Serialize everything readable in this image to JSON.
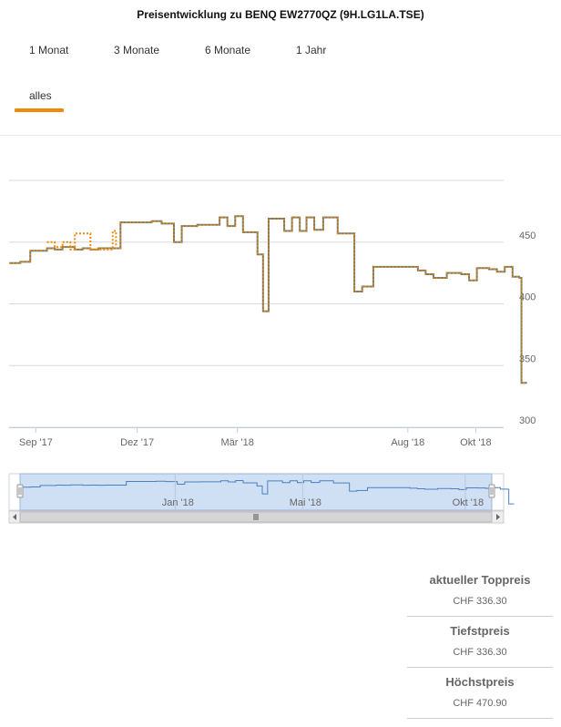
{
  "title": "Preisentwicklung zu BENQ EW2770QZ (9H.LG1LA.TSE)",
  "ranges": [
    "1 Monat",
    "3 Monate",
    "6 Monate",
    "1 Jahr",
    "alles"
  ],
  "active_range": "alles",
  "colors": {
    "accent": "#f0880a",
    "line": "#4a7fc1",
    "dots": "#f0880a",
    "navigator_fill": "#cfe0f5"
  },
  "chart_data": {
    "type": "line",
    "title": "",
    "xlabel": "",
    "ylabel": "",
    "ylim": [
      300,
      500
    ],
    "yticks": [
      300,
      350,
      400,
      450
    ],
    "xlim": [
      "2017-08-08",
      "2018-10-26"
    ],
    "xticks": [
      {
        "date": "2017-09-01",
        "label": "Sep '17"
      },
      {
        "date": "2017-12-01",
        "label": "Dez '17"
      },
      {
        "date": "2018-03-01",
        "label": "Mär '18"
      },
      {
        "date": "2018-08-01",
        "label": "Aug '18"
      },
      {
        "date": "2018-10-01",
        "label": "Okt '18"
      }
    ],
    "grid": true,
    "series": [
      {
        "step": true,
        "points": [
          [
            "2017-08-08",
            433
          ],
          [
            "2017-08-18",
            434
          ],
          [
            "2017-08-27",
            443
          ],
          [
            "2017-09-11",
            445
          ],
          [
            "2017-09-18",
            444
          ],
          [
            "2017-09-25",
            446
          ],
          [
            "2017-10-06",
            444
          ],
          [
            "2017-10-13",
            445
          ],
          [
            "2017-10-20",
            444
          ],
          [
            "2017-10-27",
            445
          ],
          [
            "2017-11-09",
            445
          ],
          [
            "2017-11-16",
            466
          ],
          [
            "2017-12-14",
            467
          ],
          [
            "2017-12-23",
            465
          ],
          [
            "2018-01-03",
            450
          ],
          [
            "2018-01-10",
            463
          ],
          [
            "2018-01-24",
            464
          ],
          [
            "2018-02-13",
            470
          ],
          [
            "2018-02-20",
            463
          ],
          [
            "2018-02-27",
            471
          ],
          [
            "2018-03-06",
            458
          ],
          [
            "2018-03-13",
            458
          ],
          [
            "2018-03-19",
            440
          ],
          [
            "2018-03-24",
            394
          ],
          [
            "2018-03-29",
            469
          ],
          [
            "2018-04-12",
            459
          ],
          [
            "2018-04-19",
            470
          ],
          [
            "2018-04-26",
            459
          ],
          [
            "2018-05-02",
            470
          ],
          [
            "2018-05-09",
            460
          ],
          [
            "2018-05-17",
            470
          ],
          [
            "2018-05-30",
            457
          ],
          [
            "2018-06-14",
            410
          ],
          [
            "2018-06-21",
            414
          ],
          [
            "2018-07-01",
            430
          ],
          [
            "2018-07-20",
            430
          ],
          [
            "2018-08-10",
            427
          ],
          [
            "2018-08-17",
            424
          ],
          [
            "2018-08-24",
            421
          ],
          [
            "2018-09-05",
            425
          ],
          [
            "2018-09-18",
            424
          ],
          [
            "2018-09-25",
            419
          ],
          [
            "2018-10-02",
            429
          ],
          [
            "2018-10-13",
            428
          ],
          [
            "2018-10-20",
            426
          ],
          [
            "2018-10-27",
            430
          ],
          [
            "2018-11-03",
            422
          ],
          [
            "2018-11-09",
            421
          ],
          [
            "2018-11-11",
            336
          ],
          [
            "2018-11-16",
            336
          ]
        ]
      },
      {
        "step": true,
        "dashed": true,
        "points": [
          [
            "2017-09-11",
            450
          ],
          [
            "2017-09-18",
            446
          ],
          [
            "2017-09-25",
            450
          ],
          [
            "2017-10-02",
            444
          ],
          [
            "2017-10-06",
            457
          ],
          [
            "2017-10-20",
            444
          ],
          [
            "2017-11-09",
            459
          ],
          [
            "2017-11-12",
            446
          ]
        ]
      }
    ],
    "navigator": {
      "xticks": [
        {
          "date": "2018-01-01",
          "label": "Jan '18"
        },
        {
          "date": "2018-05-01",
          "label": "Mai '18"
        },
        {
          "date": "2018-10-01",
          "label": "Okt '18"
        }
      ]
    }
  },
  "summary": [
    {
      "label": "aktueller Toppreis",
      "value": "CHF 336.30"
    },
    {
      "label": "Tiefstpreis",
      "value": "CHF 336.30"
    },
    {
      "label": "Höchstpreis",
      "value": "CHF 470.90"
    }
  ]
}
